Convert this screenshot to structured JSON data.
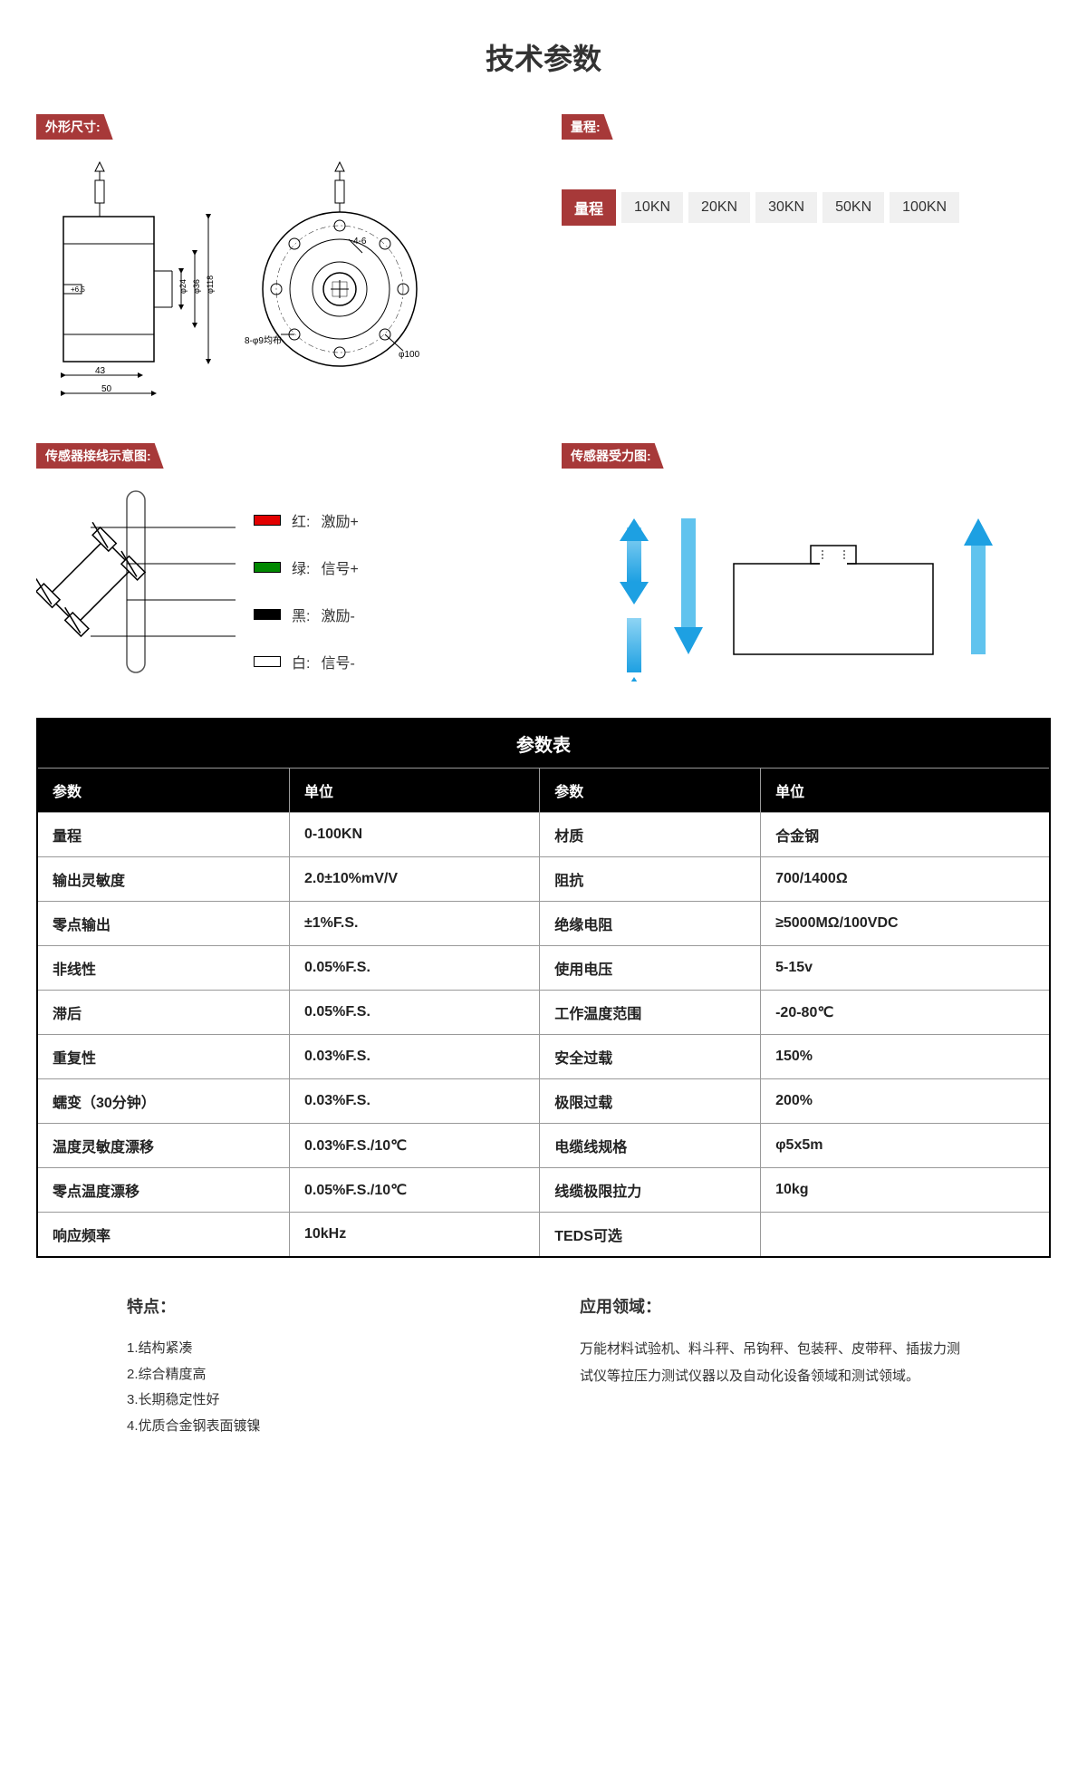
{
  "title": "技术参数",
  "labels": {
    "dimensions": "外形尺寸:",
    "range": "量程:",
    "wiring": "传感器接线示意图:",
    "force": "传感器受力图:"
  },
  "dim_diagram": {
    "d_outer": "φ118",
    "d_mid": "φ36",
    "d_inner": "φ24",
    "hole": "+6.5",
    "w_inner": "43",
    "w_outer": "50",
    "bolt_pattern": "8-φ9均布",
    "bolt_size": "4-6",
    "pcd": "φ100"
  },
  "range_label": "量程",
  "range_items": [
    "10KN",
    "20KN",
    "30KN",
    "50KN",
    "100KN"
  ],
  "wires": [
    {
      "color": "#e20000",
      "name": "红:",
      "signal": "激励+"
    },
    {
      "color": "#008800",
      "name": "绿:",
      "signal": "信号+"
    },
    {
      "color": "#000000",
      "name": "黑:",
      "signal": "激励-"
    },
    {
      "color": "#ffffff",
      "name": "白:",
      "signal": "信号-"
    }
  ],
  "arrow_color": "#1da0e2",
  "param_table": {
    "title": "参数表",
    "headers": [
      "参数",
      "单位",
      "参数",
      "单位"
    ],
    "rows": [
      [
        "量程",
        "0-100KN",
        "材质",
        "合金钢"
      ],
      [
        "输出灵敏度",
        "2.0±10%mV/V",
        "阻抗",
        "700/1400Ω"
      ],
      [
        "零点输出",
        "±1%F.S.",
        "绝缘电阻",
        "≥5000MΩ/100VDC"
      ],
      [
        "非线性",
        "0.05%F.S.",
        "使用电压",
        "5-15v"
      ],
      [
        "滞后",
        "0.05%F.S.",
        "工作温度范围",
        "-20-80℃"
      ],
      [
        "重复性",
        "0.03%F.S.",
        "安全过载",
        "150%"
      ],
      [
        "蠕变（30分钟）",
        "0.03%F.S.",
        "极限过载",
        "200%"
      ],
      [
        "温度灵敏度漂移",
        "0.03%F.S./10℃",
        "电缆线规格",
        "φ5x5m"
      ],
      [
        "零点温度漂移",
        "0.05%F.S./10℃",
        "线缆极限拉力",
        "10kg"
      ],
      [
        "响应频率",
        "10kHz",
        "TEDS可选",
        ""
      ]
    ]
  },
  "features": {
    "title": "特点：",
    "items": [
      "1.结构紧凑",
      "2.综合精度高",
      "3.长期稳定性好",
      "4.优质合金钢表面镀镍"
    ]
  },
  "applications": {
    "title": "应用领域：",
    "text": "万能材料试验机、料斗秤、吊钩秤、包装秤、皮带秤、插拔力测试仪等拉压力测试仪器以及自动化设备领域和测试领域。"
  }
}
